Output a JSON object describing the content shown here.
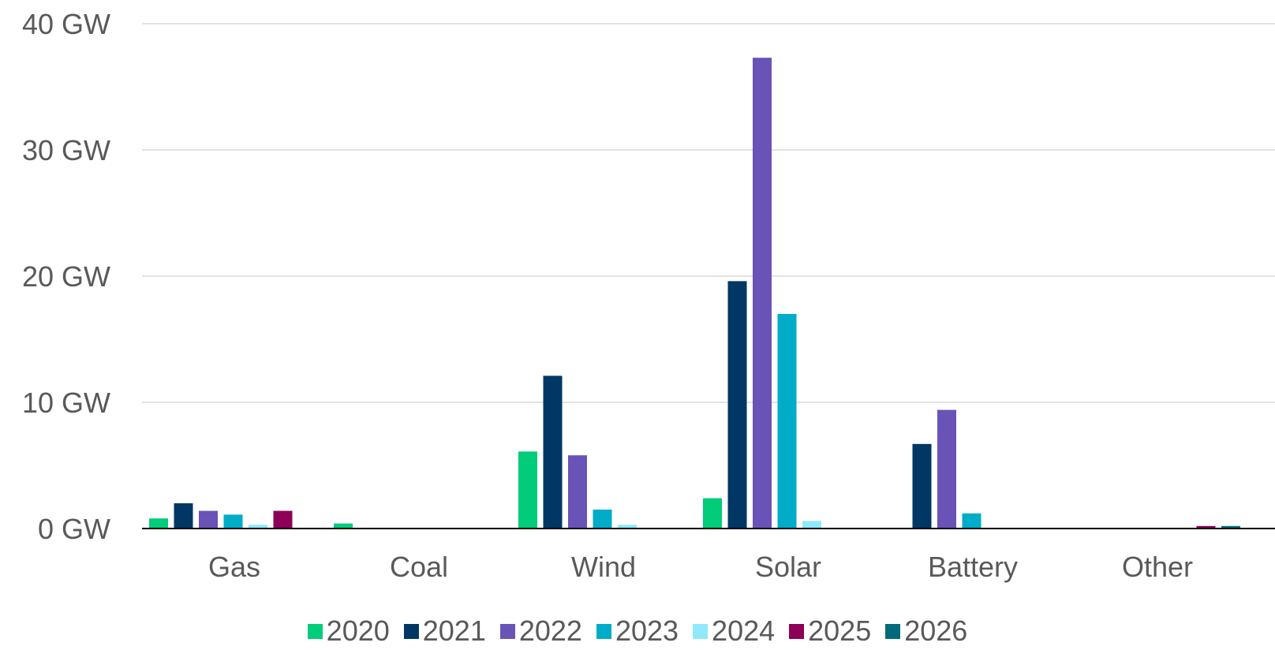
{
  "chart_data": {
    "type": "bar",
    "categories": [
      "Gas",
      "Coal",
      "Wind",
      "Solar",
      "Battery",
      "Other"
    ],
    "y_ticks": [
      "0 GW",
      "10 GW",
      "20 GW",
      "30 GW",
      "40 GW"
    ],
    "ylim": [
      0,
      40
    ],
    "grid": true,
    "legend_position": "bottom",
    "series": [
      {
        "name": "2020",
        "color": "#00CC7A",
        "values": [
          0.8,
          0.4,
          6.1,
          2.4,
          0,
          0
        ]
      },
      {
        "name": "2021",
        "color": "#003764",
        "values": [
          2.0,
          0,
          12.1,
          19.6,
          6.7,
          0
        ]
      },
      {
        "name": "2022",
        "color": "#6953B7",
        "values": [
          1.4,
          0,
          5.8,
          37.3,
          9.4,
          0
        ]
      },
      {
        "name": "2023",
        "color": "#00ACC8",
        "values": [
          1.1,
          0,
          1.5,
          17.0,
          1.2,
          0
        ]
      },
      {
        "name": "2024",
        "color": "#8FE9FB",
        "values": [
          0.3,
          0,
          0.3,
          0.6,
          0,
          0
        ]
      },
      {
        "name": "2025",
        "color": "#8C0058",
        "values": [
          1.4,
          0,
          0,
          0,
          0,
          0.2
        ]
      },
      {
        "name": "2026",
        "color": "#006B7A",
        "values": [
          0,
          0,
          0,
          0,
          0,
          0.2
        ]
      }
    ]
  }
}
